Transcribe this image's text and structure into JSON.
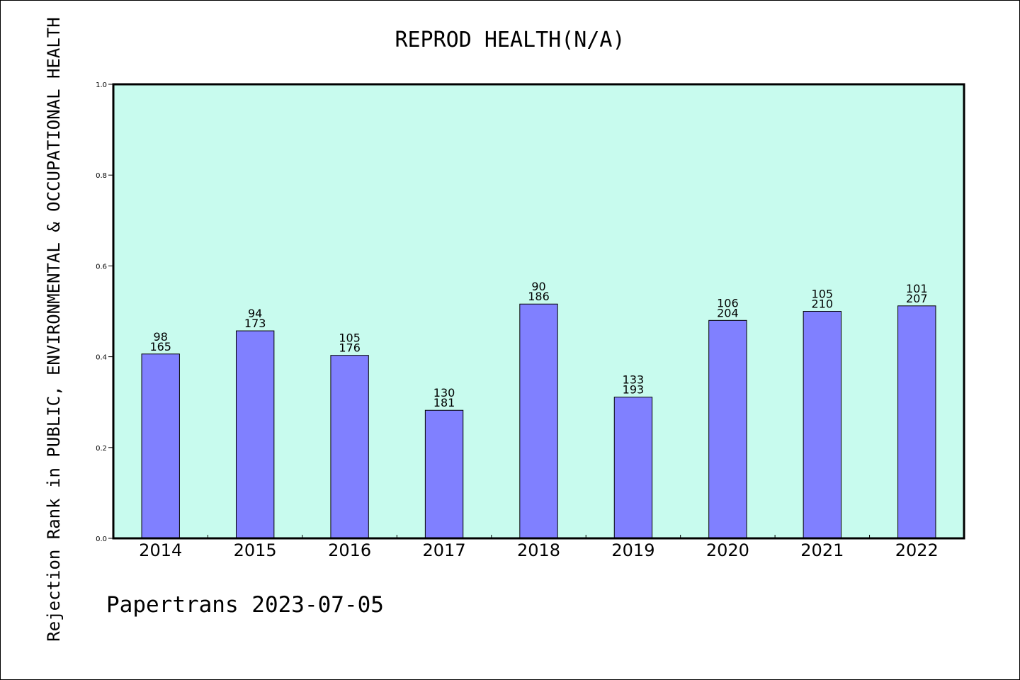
{
  "chart_data": {
    "type": "bar",
    "title": "REPROD HEALTH(N/A)",
    "ylabel": "Rejection Rank in PUBLIC, ENVIRONMENTAL & OCCUPATIONAL HEALTH",
    "xlabel": "",
    "categories": [
      "2014",
      "2015",
      "2016",
      "2017",
      "2018",
      "2019",
      "2020",
      "2021",
      "2022"
    ],
    "values": [
      0.406,
      0.457,
      0.403,
      0.282,
      0.516,
      0.311,
      0.48,
      0.5,
      0.512
    ],
    "labels_top": [
      "98",
      "94",
      "105",
      "130",
      "90",
      "133",
      "106",
      "105",
      "101"
    ],
    "labels_bottom": [
      "165",
      "173",
      "176",
      "181",
      "186",
      "193",
      "204",
      "210",
      "207"
    ],
    "ylim": [
      0,
      1.0
    ],
    "yticks": [
      "0.0",
      "0.2",
      "0.4",
      "0.6",
      "0.8",
      "1.0"
    ],
    "grid": false,
    "colors": {
      "plot_background": "#c8fbee",
      "bar_fill": "#8080ff",
      "bar_stroke": "#000000"
    }
  },
  "footer": {
    "text": "Papertrans 2023-07-05"
  }
}
